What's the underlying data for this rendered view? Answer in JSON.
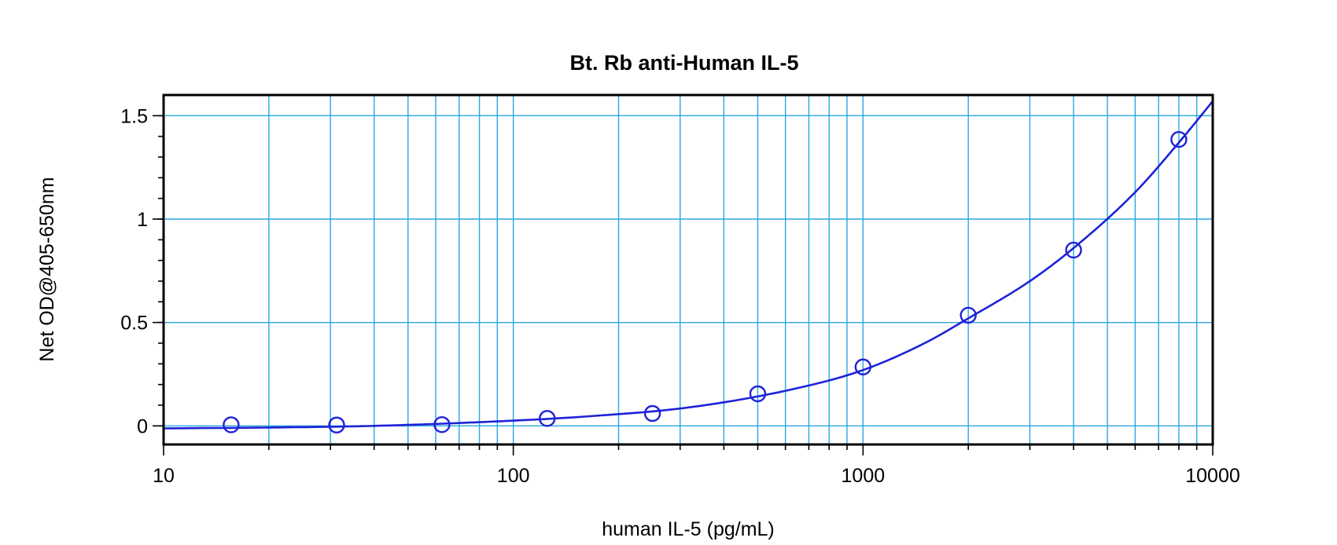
{
  "chart_data": {
    "type": "scatter",
    "title": "Bt. Rb anti-Human IL-5",
    "xlabel": "human IL-5 (pg/mL)",
    "ylabel": "Net OD@405-650nm",
    "x_scale": "log",
    "xlim": [
      10,
      10000
    ],
    "ylim": [
      -0.09,
      1.6
    ],
    "x_ticks": [
      10,
      100,
      1000,
      10000
    ],
    "x_tick_labels": [
      "10",
      "100",
      "1000",
      "10000"
    ],
    "y_ticks": [
      0,
      0.5,
      1,
      1.5
    ],
    "y_tick_labels": [
      "0",
      "0.5",
      "1",
      "1.5"
    ],
    "grid": true,
    "colors": {
      "grid": "#29a8e0",
      "series": "#1e22d8"
    },
    "series": [
      {
        "x": [
          15.6,
          31.25,
          62.5,
          125,
          250,
          500,
          1000,
          2000,
          4000,
          8000
        ],
        "y": [
          0.005,
          0.004,
          0.006,
          0.036,
          0.06,
          0.155,
          0.285,
          0.535,
          0.85,
          1.385
        ]
      }
    ],
    "fit_curve": {
      "x": [
        10,
        20,
        40,
        80,
        160,
        320,
        640,
        1000,
        1500,
        2000,
        3000,
        4000,
        6000,
        8000,
        10000
      ],
      "y": [
        -0.012,
        -0.008,
        0.0,
        0.018,
        0.045,
        0.09,
        0.18,
        0.27,
        0.4,
        0.52,
        0.7,
        0.86,
        1.13,
        1.37,
        1.57
      ]
    }
  }
}
